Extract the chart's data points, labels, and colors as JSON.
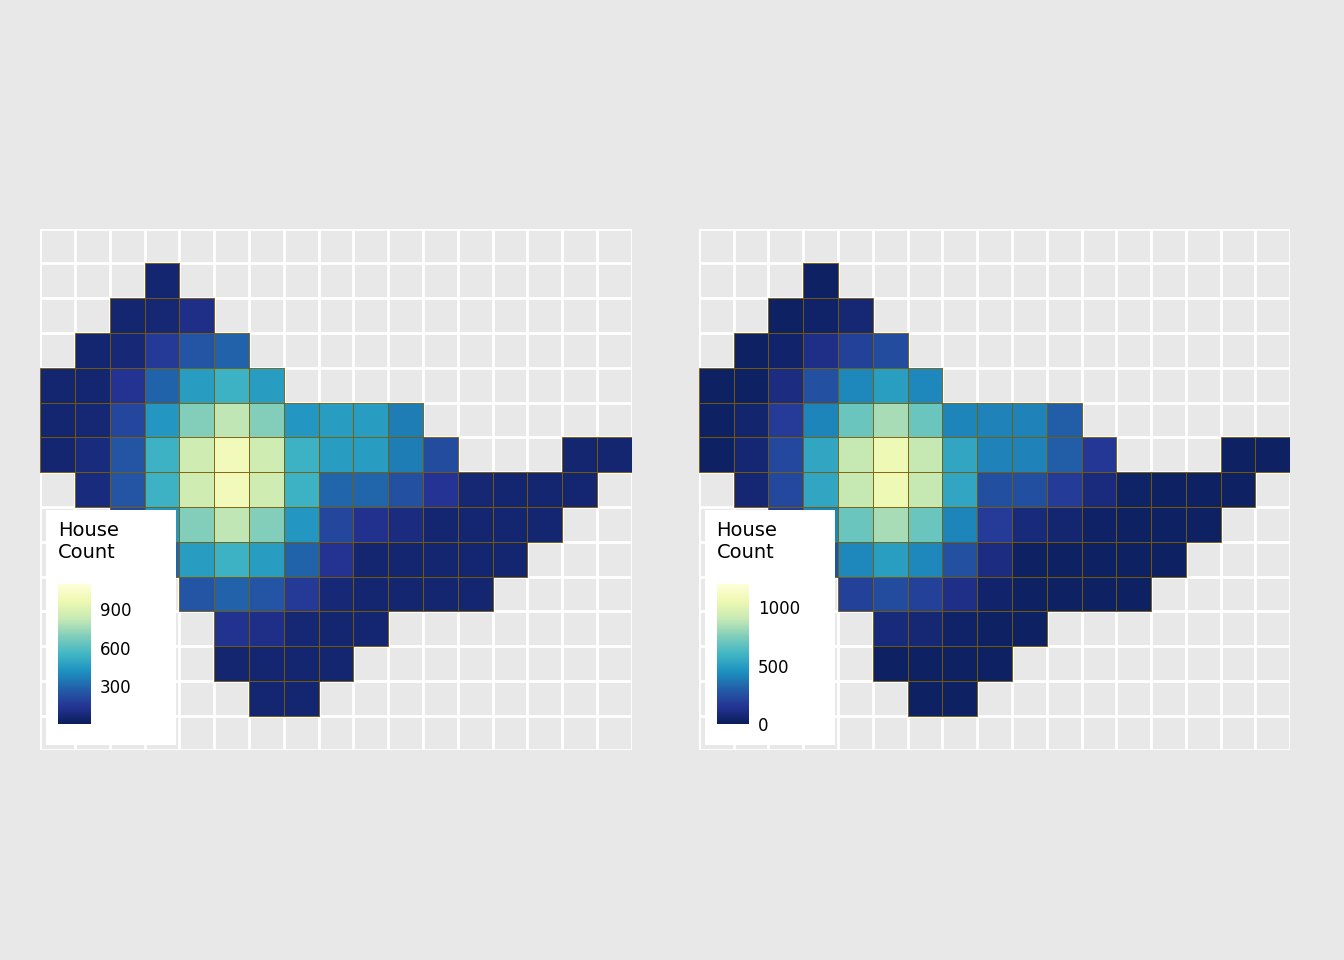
{
  "background_color": "#e8e8e8",
  "panel_color": "#e8e8e8",
  "cell_edgecolor": "#7a5c00",
  "cell_linewidth": 0.6,
  "colormap": "YlGnBu_r",
  "grid_color": "white",
  "grid_linewidth": 2.0,
  "legend_title": "House\nCount",
  "plot1_vmin": 0,
  "plot1_vmax": 1100,
  "plot1_ticks": [
    300,
    600,
    900
  ],
  "plot2_vmin": 0,
  "plot2_vmax": 1200,
  "plot2_ticks": [
    0,
    500,
    1000
  ],
  "ncols": 17,
  "nrows": 15,
  "shape": [
    [
      0,
      0,
      0,
      0,
      0,
      0,
      0,
      0,
      0,
      0,
      0,
      0,
      0,
      0,
      0,
      0,
      0
    ],
    [
      0,
      0,
      0,
      1,
      0,
      0,
      0,
      0,
      0,
      0,
      0,
      0,
      0,
      0,
      0,
      0,
      0
    ],
    [
      0,
      0,
      1,
      1,
      1,
      0,
      0,
      0,
      0,
      0,
      0,
      0,
      0,
      0,
      0,
      0,
      0
    ],
    [
      0,
      1,
      1,
      1,
      1,
      1,
      0,
      0,
      0,
      0,
      0,
      0,
      0,
      0,
      0,
      0,
      0
    ],
    [
      1,
      1,
      1,
      1,
      1,
      1,
      1,
      0,
      0,
      0,
      0,
      0,
      0,
      0,
      0,
      0,
      0
    ],
    [
      1,
      1,
      1,
      1,
      1,
      1,
      1,
      1,
      1,
      1,
      1,
      0,
      0,
      0,
      0,
      0,
      0
    ],
    [
      1,
      1,
      1,
      1,
      1,
      1,
      1,
      1,
      1,
      1,
      1,
      1,
      0,
      0,
      0,
      1,
      1
    ],
    [
      0,
      1,
      1,
      1,
      1,
      1,
      1,
      1,
      1,
      1,
      1,
      1,
      1,
      1,
      1,
      1,
      0
    ],
    [
      0,
      0,
      1,
      1,
      1,
      1,
      1,
      1,
      1,
      1,
      1,
      1,
      1,
      1,
      1,
      0,
      0
    ],
    [
      0,
      0,
      0,
      1,
      1,
      1,
      1,
      1,
      1,
      1,
      1,
      1,
      1,
      1,
      0,
      0,
      0
    ],
    [
      0,
      0,
      0,
      0,
      1,
      1,
      1,
      1,
      1,
      1,
      1,
      1,
      1,
      0,
      0,
      0,
      0
    ],
    [
      0,
      0,
      0,
      0,
      0,
      1,
      1,
      1,
      1,
      1,
      0,
      0,
      0,
      0,
      0,
      0,
      0
    ],
    [
      0,
      0,
      0,
      0,
      0,
      1,
      1,
      1,
      1,
      0,
      0,
      0,
      0,
      0,
      0,
      0,
      0
    ],
    [
      0,
      0,
      0,
      0,
      0,
      0,
      1,
      1,
      0,
      0,
      0,
      0,
      0,
      0,
      0,
      0,
      0
    ],
    [
      0,
      0,
      0,
      0,
      0,
      0,
      0,
      0,
      0,
      0,
      0,
      0,
      0,
      0,
      0,
      0,
      0
    ]
  ]
}
